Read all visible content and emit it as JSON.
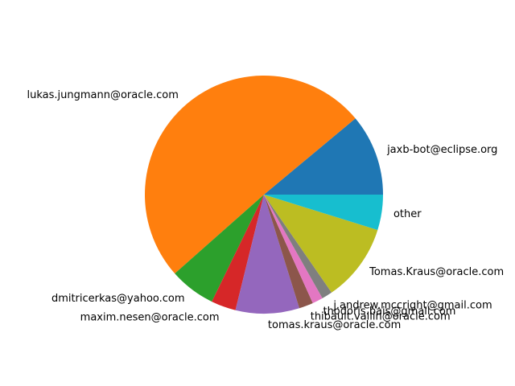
{
  "chart_data": {
    "type": "pie",
    "categories": [
      "jaxb-bot@eclipse.org",
      "lukas.jungmann@oracle.com",
      "dmitricerkas@yahoo.com",
      "maxim.nesen@oracle.com",
      "tomas.kraus@oracle.com",
      "thibault.vallin@oracle.com",
      "thodoris.bais@gmail.com",
      "j.andrew.mccright@gmail.com",
      "Tomas.Kraus@oracle.com",
      "other"
    ],
    "values": [
      11.5,
      52.5,
      6.5,
      3.5,
      9.0,
      2.0,
      1.5,
      1.5,
      11.0,
      5.0
    ],
    "colors": [
      "#1f77b4",
      "#ff7f0e",
      "#2ca02c",
      "#d62728",
      "#9467bd",
      "#8c564b",
      "#e377c2",
      "#7f7f7f",
      "#bcbd22",
      "#17becf"
    ],
    "start_angle": 0,
    "direction": "counterclockwise",
    "legend": false
  }
}
